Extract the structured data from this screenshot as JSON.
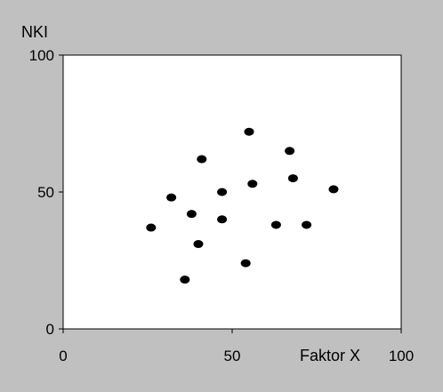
{
  "colors": {
    "background": "#c0c0c0",
    "plot_area": "#ffffff",
    "axis": "#000000",
    "marker": "#000000"
  },
  "chart_data": {
    "type": "scatter",
    "title": "",
    "xlabel": "Faktor X",
    "ylabel": "NKI",
    "xlim": [
      0,
      100
    ],
    "ylim": [
      0,
      100
    ],
    "x_ticks": [
      "0",
      "50",
      "100"
    ],
    "y_ticks": [
      "0",
      "50",
      "100"
    ],
    "grid": false,
    "legend": "none",
    "points": [
      {
        "x": 26,
        "y": 37
      },
      {
        "x": 32,
        "y": 48
      },
      {
        "x": 36,
        "y": 18
      },
      {
        "x": 38,
        "y": 42
      },
      {
        "x": 40,
        "y": 31
      },
      {
        "x": 41,
        "y": 62
      },
      {
        "x": 47,
        "y": 50
      },
      {
        "x": 47,
        "y": 40
      },
      {
        "x": 54,
        "y": 24
      },
      {
        "x": 55,
        "y": 72
      },
      {
        "x": 56,
        "y": 53
      },
      {
        "x": 63,
        "y": 38
      },
      {
        "x": 67,
        "y": 65
      },
      {
        "x": 68,
        "y": 55
      },
      {
        "x": 72,
        "y": 38
      },
      {
        "x": 80,
        "y": 51
      }
    ]
  }
}
